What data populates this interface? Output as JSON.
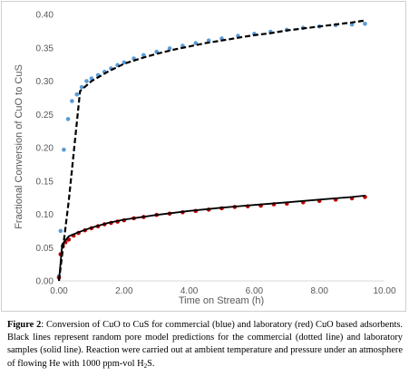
{
  "chart_data": {
    "type": "scatter",
    "xlabel": "Time on Stream (h)",
    "ylabel": "Fractional Conversion of CuO to CuS",
    "xlim": [
      0,
      10
    ],
    "ylim": [
      0,
      0.4
    ],
    "x_ticks": [
      "0.00",
      "2.00",
      "4.00",
      "6.00",
      "8.00",
      "10.00"
    ],
    "y_ticks": [
      "0.00",
      "0.05",
      "0.10",
      "0.15",
      "0.20",
      "0.25",
      "0.30",
      "0.35",
      "0.40"
    ],
    "grid": false,
    "legend": "none",
    "series": [
      {
        "style": "dots",
        "color": "#5b9bd5",
        "x": [
          0.0,
          0.05,
          0.15,
          0.28,
          0.4,
          0.55,
          0.7,
          0.85,
          1.0,
          1.2,
          1.4,
          1.6,
          1.8,
          2.0,
          2.3,
          2.6,
          3.0,
          3.4,
          3.8,
          4.2,
          4.6,
          5.0,
          5.5,
          6.0,
          6.5,
          7.0,
          7.5,
          8.0,
          8.5,
          9.0,
          9.4
        ],
        "y": [
          0.007,
          0.075,
          0.197,
          0.243,
          0.27,
          0.28,
          0.291,
          0.3,
          0.304,
          0.309,
          0.314,
          0.319,
          0.324,
          0.328,
          0.334,
          0.339,
          0.344,
          0.349,
          0.353,
          0.357,
          0.361,
          0.364,
          0.368,
          0.371,
          0.374,
          0.377,
          0.38,
          0.382,
          0.384,
          0.385,
          0.386
        ]
      },
      {
        "style": "dots",
        "color": "#c00000",
        "x": [
          0.0,
          0.05,
          0.12,
          0.2,
          0.3,
          0.45,
          0.6,
          0.8,
          1.0,
          1.2,
          1.4,
          1.6,
          1.8,
          2.0,
          2.3,
          2.6,
          3.0,
          3.4,
          3.8,
          4.2,
          4.6,
          5.0,
          5.4,
          5.8,
          6.2,
          6.6,
          7.0,
          7.5,
          8.0,
          8.5,
          9.0,
          9.4
        ],
        "y": [
          0.005,
          0.04,
          0.052,
          0.058,
          0.062,
          0.068,
          0.072,
          0.076,
          0.079,
          0.082,
          0.085,
          0.087,
          0.089,
          0.091,
          0.094,
          0.096,
          0.099,
          0.101,
          0.103,
          0.105,
          0.107,
          0.109,
          0.111,
          0.112,
          0.113,
          0.115,
          0.116,
          0.118,
          0.12,
          0.122,
          0.124,
          0.126
        ]
      },
      {
        "style": "dashed-line",
        "color": "#000000",
        "x": [
          0.0,
          0.3,
          0.65,
          1.0,
          1.5,
          2.0,
          2.5,
          3.0,
          3.5,
          4.0,
          4.5,
          5.0,
          5.5,
          6.0,
          6.5,
          7.0,
          7.5,
          8.0,
          8.5,
          9.0,
          9.4
        ],
        "y": [
          0.0,
          0.12,
          0.285,
          0.3,
          0.314,
          0.326,
          0.334,
          0.341,
          0.347,
          0.352,
          0.357,
          0.361,
          0.365,
          0.369,
          0.372,
          0.376,
          0.379,
          0.382,
          0.385,
          0.388,
          0.391
        ]
      },
      {
        "style": "solid-line",
        "color": "#000000",
        "x": [
          0.0,
          0.1,
          0.3,
          0.6,
          1.0,
          1.5,
          2.0,
          3.0,
          4.0,
          5.0,
          6.0,
          7.0,
          8.0,
          9.0,
          9.4
        ],
        "y": [
          0.0,
          0.055,
          0.067,
          0.073,
          0.08,
          0.087,
          0.092,
          0.099,
          0.105,
          0.11,
          0.114,
          0.118,
          0.122,
          0.126,
          0.128
        ]
      }
    ]
  },
  "caption": {
    "figure_label": "Figure 2",
    "text_before_sub": ": Conversion of CuO to CuS for commercial (blue) and laboratory (red) CuO based adsorbents. Black lines represent random pore model predictions for the commercial (dotted line) and laboratory samples (solid line). Reaction were carried out at ambient temperature and pressure under an atmosphere of flowing He with 1000 ppm-vol H",
    "subscript": "2",
    "text_after_sub": "S."
  }
}
